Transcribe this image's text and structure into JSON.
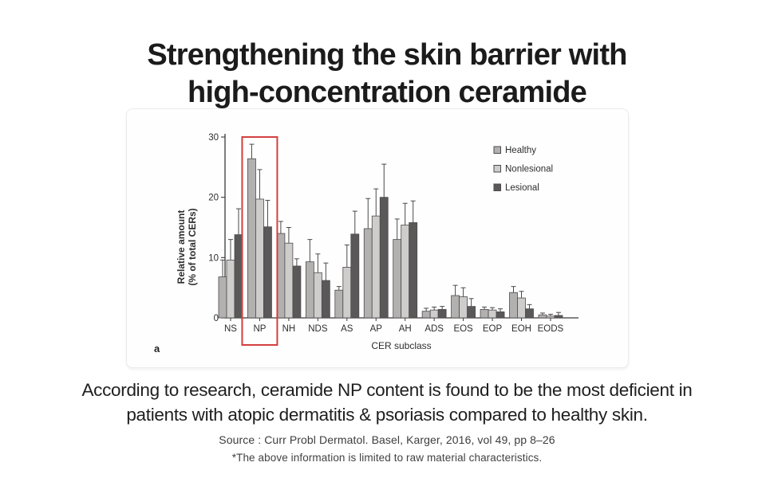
{
  "title": {
    "line1": "Strengthening the skin barrier with",
    "line2": "high-concentration ceramide"
  },
  "description": {
    "line1": "According to research, ceramide NP content is found to be the most deficient in",
    "line2": "patients with atopic dermatitis & psoriasis compared to healthy skin."
  },
  "source": "Source : Curr Probl Dermatol. Basel, Karger, 2016, vol 49, pp 8–26",
  "footnote": "*The above information is limited to raw material characteristics.",
  "colors": {
    "axis": "#3a3a3a",
    "tick_text": "#2e2e2e",
    "bar_stroke": "#4d4b4b",
    "error_bar": "#4a4a4a",
    "highlight_red": "#d43f3f"
  },
  "chart_data": {
    "type": "bar",
    "panel_label": "a",
    "xlabel": "CER subclass",
    "ylabel_line1": "Relative amount",
    "ylabel_line2": "(% of total CERs)",
    "ylim": [
      0,
      30
    ],
    "yticks": [
      0,
      10,
      20,
      30
    ],
    "grid": false,
    "legend_position": "top-right",
    "error_bars": "upper",
    "highlight": {
      "category": "NP",
      "color": "#d43f3f"
    },
    "categories": [
      "NS",
      "NP",
      "NH",
      "NDS",
      "AS",
      "AP",
      "AH",
      "ADS",
      "EOS",
      "EOP",
      "EOH",
      "EODS"
    ],
    "series": [
      {
        "name": "Healthy",
        "color": "#b2b1b0",
        "values": [
          6.8,
          26.4,
          14.0,
          9.3,
          4.6,
          14.8,
          13.0,
          1.1,
          3.7,
          1.4,
          4.2,
          0.5
        ],
        "errors": [
          2.8,
          2.4,
          2.0,
          3.7,
          0.6,
          5.0,
          3.4,
          0.5,
          1.7,
          0.4,
          1.0,
          0.3
        ]
      },
      {
        "name": "Nonlesional",
        "color": "#cecdcc",
        "values": [
          9.6,
          19.7,
          12.4,
          7.5,
          8.4,
          16.9,
          15.4,
          1.3,
          3.5,
          1.3,
          3.3,
          0.3
        ],
        "errors": [
          3.4,
          4.9,
          2.6,
          3.1,
          3.7,
          4.5,
          3.6,
          0.5,
          1.5,
          0.4,
          1.1,
          0.3
        ]
      },
      {
        "name": "Lesional",
        "color": "#5a5858",
        "values": [
          13.8,
          15.1,
          8.6,
          6.2,
          13.9,
          20.0,
          15.8,
          1.4,
          1.9,
          1.0,
          1.5,
          0.4
        ],
        "errors": [
          4.3,
          4.4,
          1.2,
          2.9,
          3.8,
          5.5,
          3.6,
          0.5,
          1.3,
          0.5,
          0.7,
          0.5
        ]
      }
    ]
  }
}
